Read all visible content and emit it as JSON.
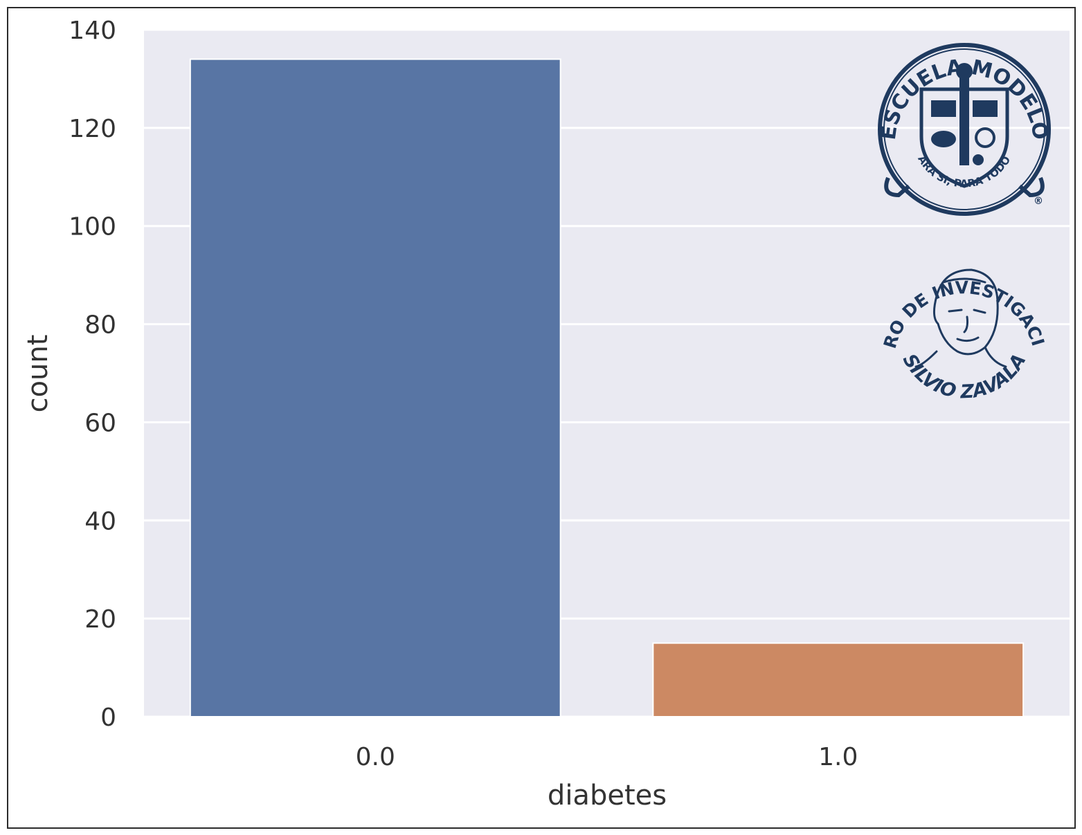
{
  "chart_data": {
    "type": "bar",
    "categories": [
      "0.0",
      "1.0"
    ],
    "values": [
      134,
      15
    ],
    "xlabel": "diabetes",
    "ylabel": "count",
    "ylim": [
      0,
      140
    ],
    "yticks": [
      "0",
      "20",
      "40",
      "60",
      "80",
      "100",
      "120",
      "140"
    ],
    "grid": true,
    "bar_colors": [
      "#5875a4",
      "#cc8963"
    ],
    "background_color": "#eaeaf2"
  },
  "logos": {
    "escuela": {
      "top_text": "ESCUELA MODELO",
      "motto": "PARA SI, PARA TODOS",
      "mark": "®"
    },
    "centro": {
      "top_text": "CENTRO DE INVESTIGACIONES",
      "bottom_text": "SILVIO ZAVALA"
    }
  }
}
